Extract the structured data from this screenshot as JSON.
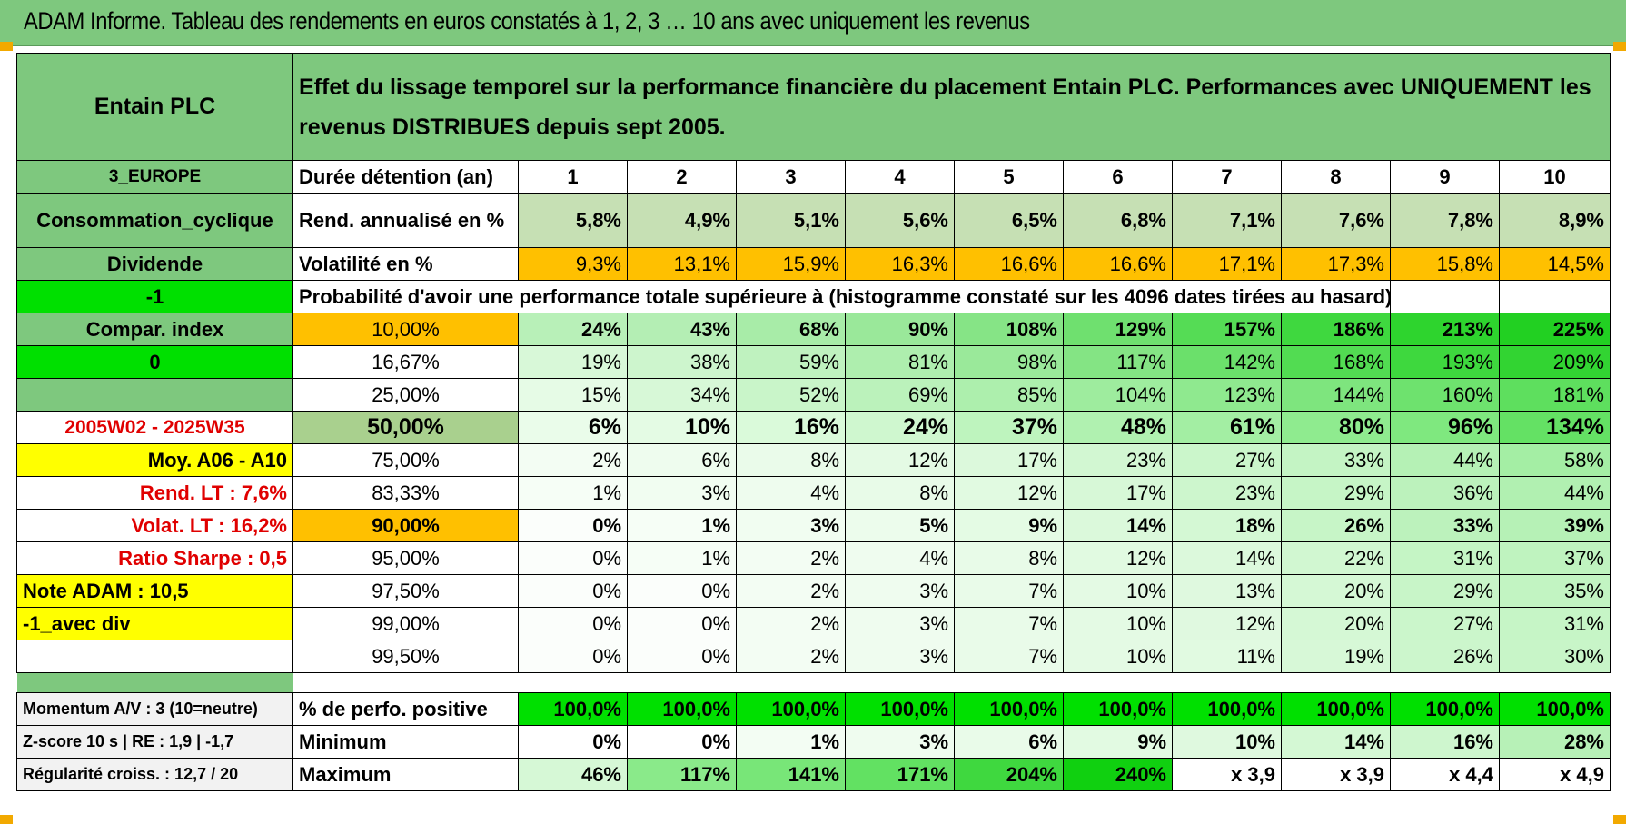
{
  "banner_title": "ADAM Informe. Tableau des rendements en euros constatés à 1, 2, 3 … 10 ans avec uniquement les revenus",
  "left": {
    "company": "Entain PLC",
    "region": "3_EUROPE",
    "sector": "Consommation_cyclique",
    "type": "Dividende",
    "flag1": "-1",
    "compar": "Compar. index",
    "flag2": "0",
    "period": "2005W02 - 2025W35",
    "moy": "Moy. A06 - A10",
    "rend_lt": "Rend. LT :    7,6%",
    "volat_lt": "Volat. LT :    16,2%",
    "sharpe": "Ratio Sharpe :     0,5",
    "note": "Note ADAM : 10,5",
    "avec_div": "-1_avec div",
    "momentum": "Momentum A/V : 3 (10=neutre)",
    "zscore": "Z-score 10 s | RE : 1,9 | -1,7",
    "regularite": "Régularité croiss. : 12,7 / 20"
  },
  "description": "Effet du lissage temporel sur la performance financière du placement Entain PLC. Performances avec UNIQUEMENT les revenus DISTRIBUES depuis sept 2005.",
  "duree_label": "Durée détention (an)",
  "years": [
    "1",
    "2",
    "3",
    "4",
    "5",
    "6",
    "7",
    "8",
    "9",
    "10"
  ],
  "rend_label": "Rend. annualisé en %",
  "rend": [
    "5,8%",
    "4,9%",
    "5,1%",
    "5,6%",
    "6,5%",
    "6,8%",
    "7,1%",
    "7,6%",
    "7,8%",
    "8,9%"
  ],
  "vol_label": "Volatilité en %",
  "vol": [
    "9,3%",
    "13,1%",
    "15,9%",
    "16,3%",
    "16,6%",
    "16,6%",
    "17,1%",
    "17,3%",
    "15,8%",
    "14,5%"
  ],
  "prob_title": "Probabilité d'avoir une performance totale supérieure à (histogramme constaté sur les 4096 dates tirées au hasard)",
  "prob_rows": [
    {
      "p": "10,00%",
      "v": [
        "24%",
        "43%",
        "68%",
        "90%",
        "108%",
        "129%",
        "157%",
        "186%",
        "213%",
        "225%"
      ]
    },
    {
      "p": "16,67%",
      "v": [
        "19%",
        "38%",
        "59%",
        "81%",
        "98%",
        "117%",
        "142%",
        "168%",
        "193%",
        "209%"
      ]
    },
    {
      "p": "25,00%",
      "v": [
        "15%",
        "34%",
        "52%",
        "69%",
        "85%",
        "104%",
        "123%",
        "144%",
        "160%",
        "181%"
      ]
    },
    {
      "p": "50,00%",
      "v": [
        "6%",
        "10%",
        "16%",
        "24%",
        "37%",
        "48%",
        "61%",
        "80%",
        "96%",
        "134%"
      ]
    },
    {
      "p": "75,00%",
      "v": [
        "2%",
        "6%",
        "8%",
        "12%",
        "17%",
        "23%",
        "27%",
        "33%",
        "44%",
        "58%"
      ]
    },
    {
      "p": "83,33%",
      "v": [
        "1%",
        "3%",
        "4%",
        "8%",
        "12%",
        "17%",
        "23%",
        "29%",
        "36%",
        "44%"
      ]
    },
    {
      "p": "90,00%",
      "v": [
        "0%",
        "1%",
        "3%",
        "5%",
        "9%",
        "14%",
        "18%",
        "26%",
        "33%",
        "39%"
      ]
    },
    {
      "p": "95,00%",
      "v": [
        "0%",
        "1%",
        "2%",
        "4%",
        "8%",
        "12%",
        "14%",
        "22%",
        "31%",
        "37%"
      ]
    },
    {
      "p": "97,50%",
      "v": [
        "0%",
        "0%",
        "2%",
        "3%",
        "7%",
        "10%",
        "13%",
        "20%",
        "29%",
        "35%"
      ]
    },
    {
      "p": "99,00%",
      "v": [
        "0%",
        "0%",
        "2%",
        "3%",
        "7%",
        "10%",
        "12%",
        "20%",
        "27%",
        "31%"
      ]
    },
    {
      "p": "99,50%",
      "v": [
        "0%",
        "0%",
        "2%",
        "3%",
        "7%",
        "10%",
        "11%",
        "19%",
        "26%",
        "30%"
      ]
    }
  ],
  "pos_label": "% de perfo. positive",
  "pos": [
    "100,0%",
    "100,0%",
    "100,0%",
    "100,0%",
    "100,0%",
    "100,0%",
    "100,0%",
    "100,0%",
    "100,0%",
    "100,0%"
  ],
  "min_label": "Minimum",
  "min": [
    "0%",
    "0%",
    "1%",
    "3%",
    "6%",
    "9%",
    "10%",
    "14%",
    "16%",
    "28%"
  ],
  "max_label": "Maximum",
  "max": [
    "46%",
    "117%",
    "141%",
    "171%",
    "204%",
    "240%",
    "x 3,9",
    "x 3,9",
    "x 4,4",
    "x 4,9"
  ]
}
